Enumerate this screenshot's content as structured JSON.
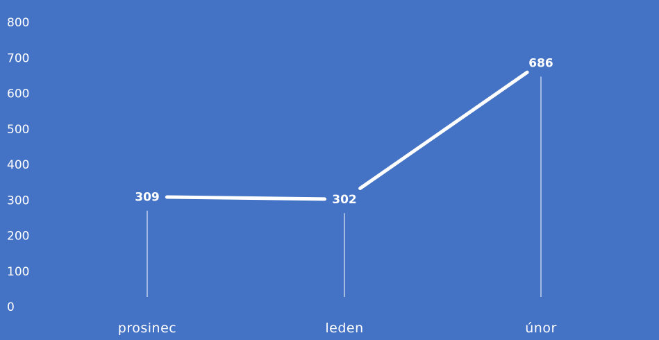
{
  "chart_data": {
    "type": "line",
    "categories": [
      "prosinec",
      "leden",
      "únor"
    ],
    "series": [
      {
        "values": [
          309,
          302,
          686
        ]
      }
    ],
    "data_labels": [
      "309",
      "302",
      "686"
    ],
    "y_ticks": [
      "0",
      "100",
      "200",
      "300",
      "400",
      "500",
      "600",
      "700",
      "800"
    ],
    "ylim": [
      0,
      800
    ],
    "grid": false,
    "drop_lines": true,
    "colors": {
      "background": "#4472c4",
      "line": "#ffffff",
      "text": "#ffffff"
    }
  }
}
